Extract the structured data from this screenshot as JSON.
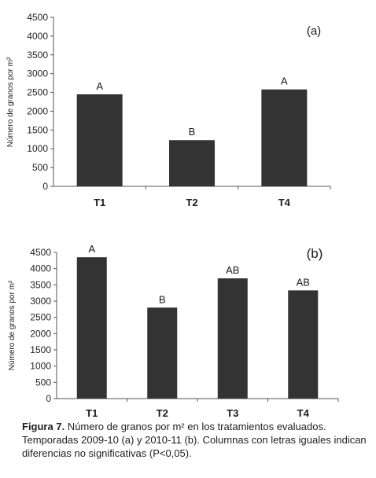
{
  "chart_data": [
    {
      "type": "bar",
      "panel_label": "(a)",
      "categories": [
        "T1",
        "T2",
        "T4"
      ],
      "values": [
        2450,
        1230,
        2580
      ],
      "annotations": [
        "A",
        "B",
        "A"
      ],
      "ylabel": "Número de granos por m²",
      "ylim": [
        0,
        4500
      ],
      "yticks": [
        "0",
        "500",
        "1000",
        "1500",
        "2000",
        "2500",
        "3000",
        "3500",
        "4000",
        "4500"
      ],
      "grid": false,
      "bar_color": "#333333"
    },
    {
      "type": "bar",
      "panel_label": "(b)",
      "categories": [
        "T1",
        "T2",
        "T3",
        "T4"
      ],
      "values": [
        4350,
        2800,
        3700,
        3330
      ],
      "annotations": [
        "A",
        "B",
        "AB",
        "AB"
      ],
      "ylabel": "Número de granos por m²",
      "ylim": [
        0,
        4500
      ],
      "yticks": [
        "0",
        "500",
        "1000",
        "1500",
        "2000",
        "2500",
        "3000",
        "3500",
        "4000",
        "4500"
      ],
      "grid": false,
      "bar_color": "#333333"
    }
  ],
  "caption": {
    "label": "Figura 7.",
    "text": " Número de granos por m² en los tratamientos evaluados. Temporadas 2009-10 (a) y 2010-11 (b). Columnas con letras iguales indican diferencias no significativas (P<0,05)."
  }
}
